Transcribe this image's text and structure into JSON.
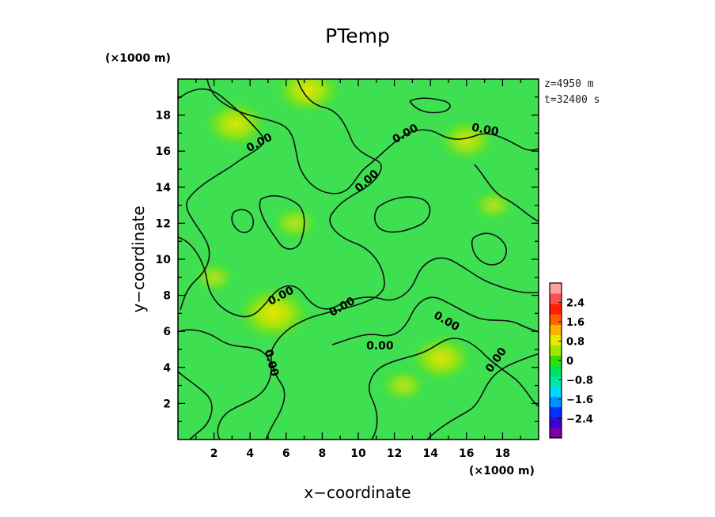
{
  "chart_data": {
    "type": "heatmap",
    "title": "PTemp",
    "xlabel": "x−coordinate",
    "ylabel": "y−coordinate",
    "x_unit": "(×1000 m)",
    "y_unit": "(×1000 m)",
    "xlim": [
      0,
      20
    ],
    "ylim": [
      0,
      20
    ],
    "xticks": [
      2,
      4,
      6,
      8,
      10,
      12,
      14,
      16,
      18
    ],
    "yticks": [
      2,
      4,
      6,
      8,
      10,
      12,
      14,
      16,
      18
    ],
    "xtick_labels": [
      "2",
      "4",
      "6",
      "8",
      "10",
      "12",
      "14",
      "16",
      "18"
    ],
    "ytick_labels": [
      "2",
      "4",
      "6",
      "8",
      "10",
      "12",
      "14",
      "16",
      "18"
    ],
    "info": [
      "z=4950  m",
      "t=32400  s"
    ],
    "background_value": -0.2,
    "hotspots": [
      {
        "x": 3.2,
        "y": 17.5,
        "value": 1.0
      },
      {
        "x": 7.2,
        "y": 19.4,
        "value": 1.1
      },
      {
        "x": 5.3,
        "y": 7.0,
        "value": 1.3
      },
      {
        "x": 14.6,
        "y": 4.5,
        "value": 1.0
      },
      {
        "x": 16.0,
        "y": 16.6,
        "value": 0.8
      },
      {
        "x": 6.5,
        "y": 12.0,
        "value": 0.5
      },
      {
        "x": 2.0,
        "y": 9.0,
        "value": 0.4
      },
      {
        "x": 12.5,
        "y": 3.0,
        "value": 0.5
      },
      {
        "x": 17.5,
        "y": 13.0,
        "value": 0.4
      }
    ],
    "contour_level_label": "0.00",
    "contour_labels": [
      {
        "x": 4.6,
        "y": 16.3,
        "text": "0.00",
        "angle": -28
      },
      {
        "x": 12.7,
        "y": 16.8,
        "text": "0.00",
        "angle": -30
      },
      {
        "x": 17.0,
        "y": 17.0,
        "text": "0.00",
        "angle": 10
      },
      {
        "x": 10.6,
        "y": 14.2,
        "text": "0.00",
        "angle": -42
      },
      {
        "x": 5.8,
        "y": 7.8,
        "text": "0.00",
        "angle": -28
      },
      {
        "x": 9.2,
        "y": 7.2,
        "text": "0.00",
        "angle": -30
      },
      {
        "x": 14.8,
        "y": 6.4,
        "text": "0.00",
        "angle": 30
      },
      {
        "x": 11.2,
        "y": 5.0,
        "text": "0.00",
        "angle": 0
      },
      {
        "x": 17.8,
        "y": 4.3,
        "text": "0.00",
        "angle": -55
      },
      {
        "x": 5.0,
        "y": 4.2,
        "text": "0.00",
        "angle": 75
      }
    ],
    "colorbar": {
      "min": -3.2,
      "max": 3.2,
      "ticks": [
        2.4,
        1.6,
        0.8,
        0,
        -0.8,
        -1.6,
        -2.4
      ],
      "tick_labels": [
        "2.4",
        "1.6",
        "0.8",
        "0",
        "−0.8",
        "−1.6",
        "−2.4"
      ],
      "colors": [
        "#7a00a8",
        "#3c00d8",
        "#0030ff",
        "#0090ff",
        "#00d8ff",
        "#00e8a0",
        "#00e060",
        "#30e000",
        "#a0e800",
        "#e8e800",
        "#ffb000",
        "#ff6000",
        "#ff2000",
        "#ff5050",
        "#ffa0a0"
      ]
    }
  }
}
